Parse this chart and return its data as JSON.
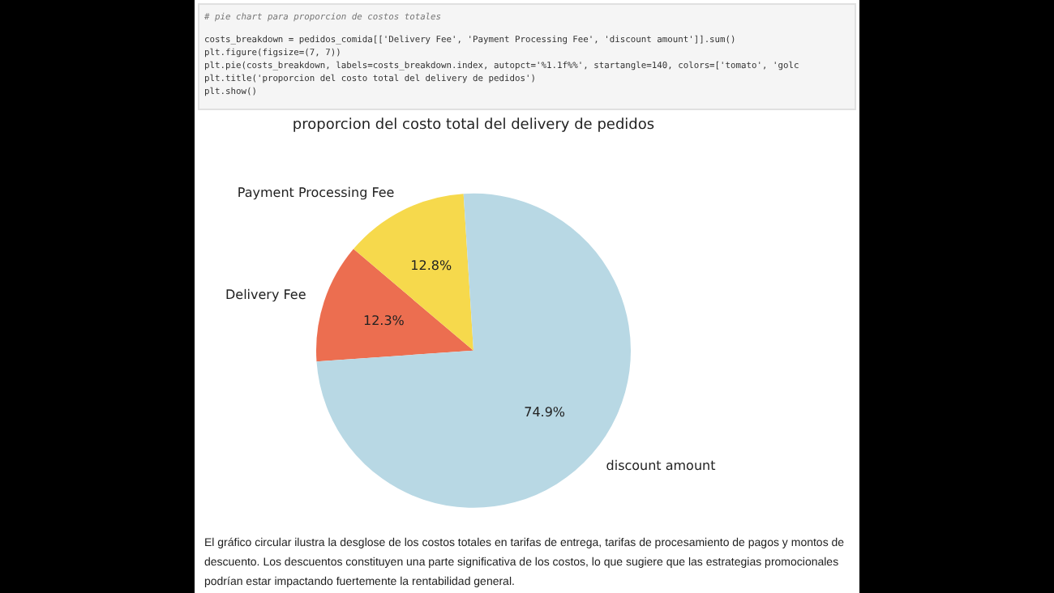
{
  "chart_data": {
    "type": "pie",
    "title": "proporcion del costo total del delivery de pedidos",
    "categories": [
      "Delivery Fee",
      "Payment Processing Fee",
      "discount amount"
    ],
    "values": [
      12.3,
      12.8,
      74.9
    ],
    "colors": [
      "#ec6e50",
      "#f6d94c",
      "#b8d8e4"
    ],
    "value_labels": [
      "12.3%",
      "12.8%",
      "74.9%"
    ],
    "annotations": [
      "# pie chart para proporcion de costos totales",
      "costs_breakdown = pedidos_comida[['Delivery Fee', 'Payment Processing Fee', 'discount amount']].sum()",
      "plt.figure(figsize=(7, 7))",
      "plt.pie(costs_breakdown, labels=costs_breakdown.index, autopct='%1.1f%%', startangle=140, colors=['tomato', 'golc",
      "plt.title('proporcion del costo total del delivery de pedidos')",
      "plt.show()",
      "El gráfico circular ilustra la desglose de los costos totales en tarifas de entrega, tarifas de procesamiento de pagos y montos de descuento. Los descuentos constituyen una parte significativa de los costos, lo que sugiere que las estrategias promocionales podrían estar impactando fuertemente la rentabilidad general."
    ]
  }
}
